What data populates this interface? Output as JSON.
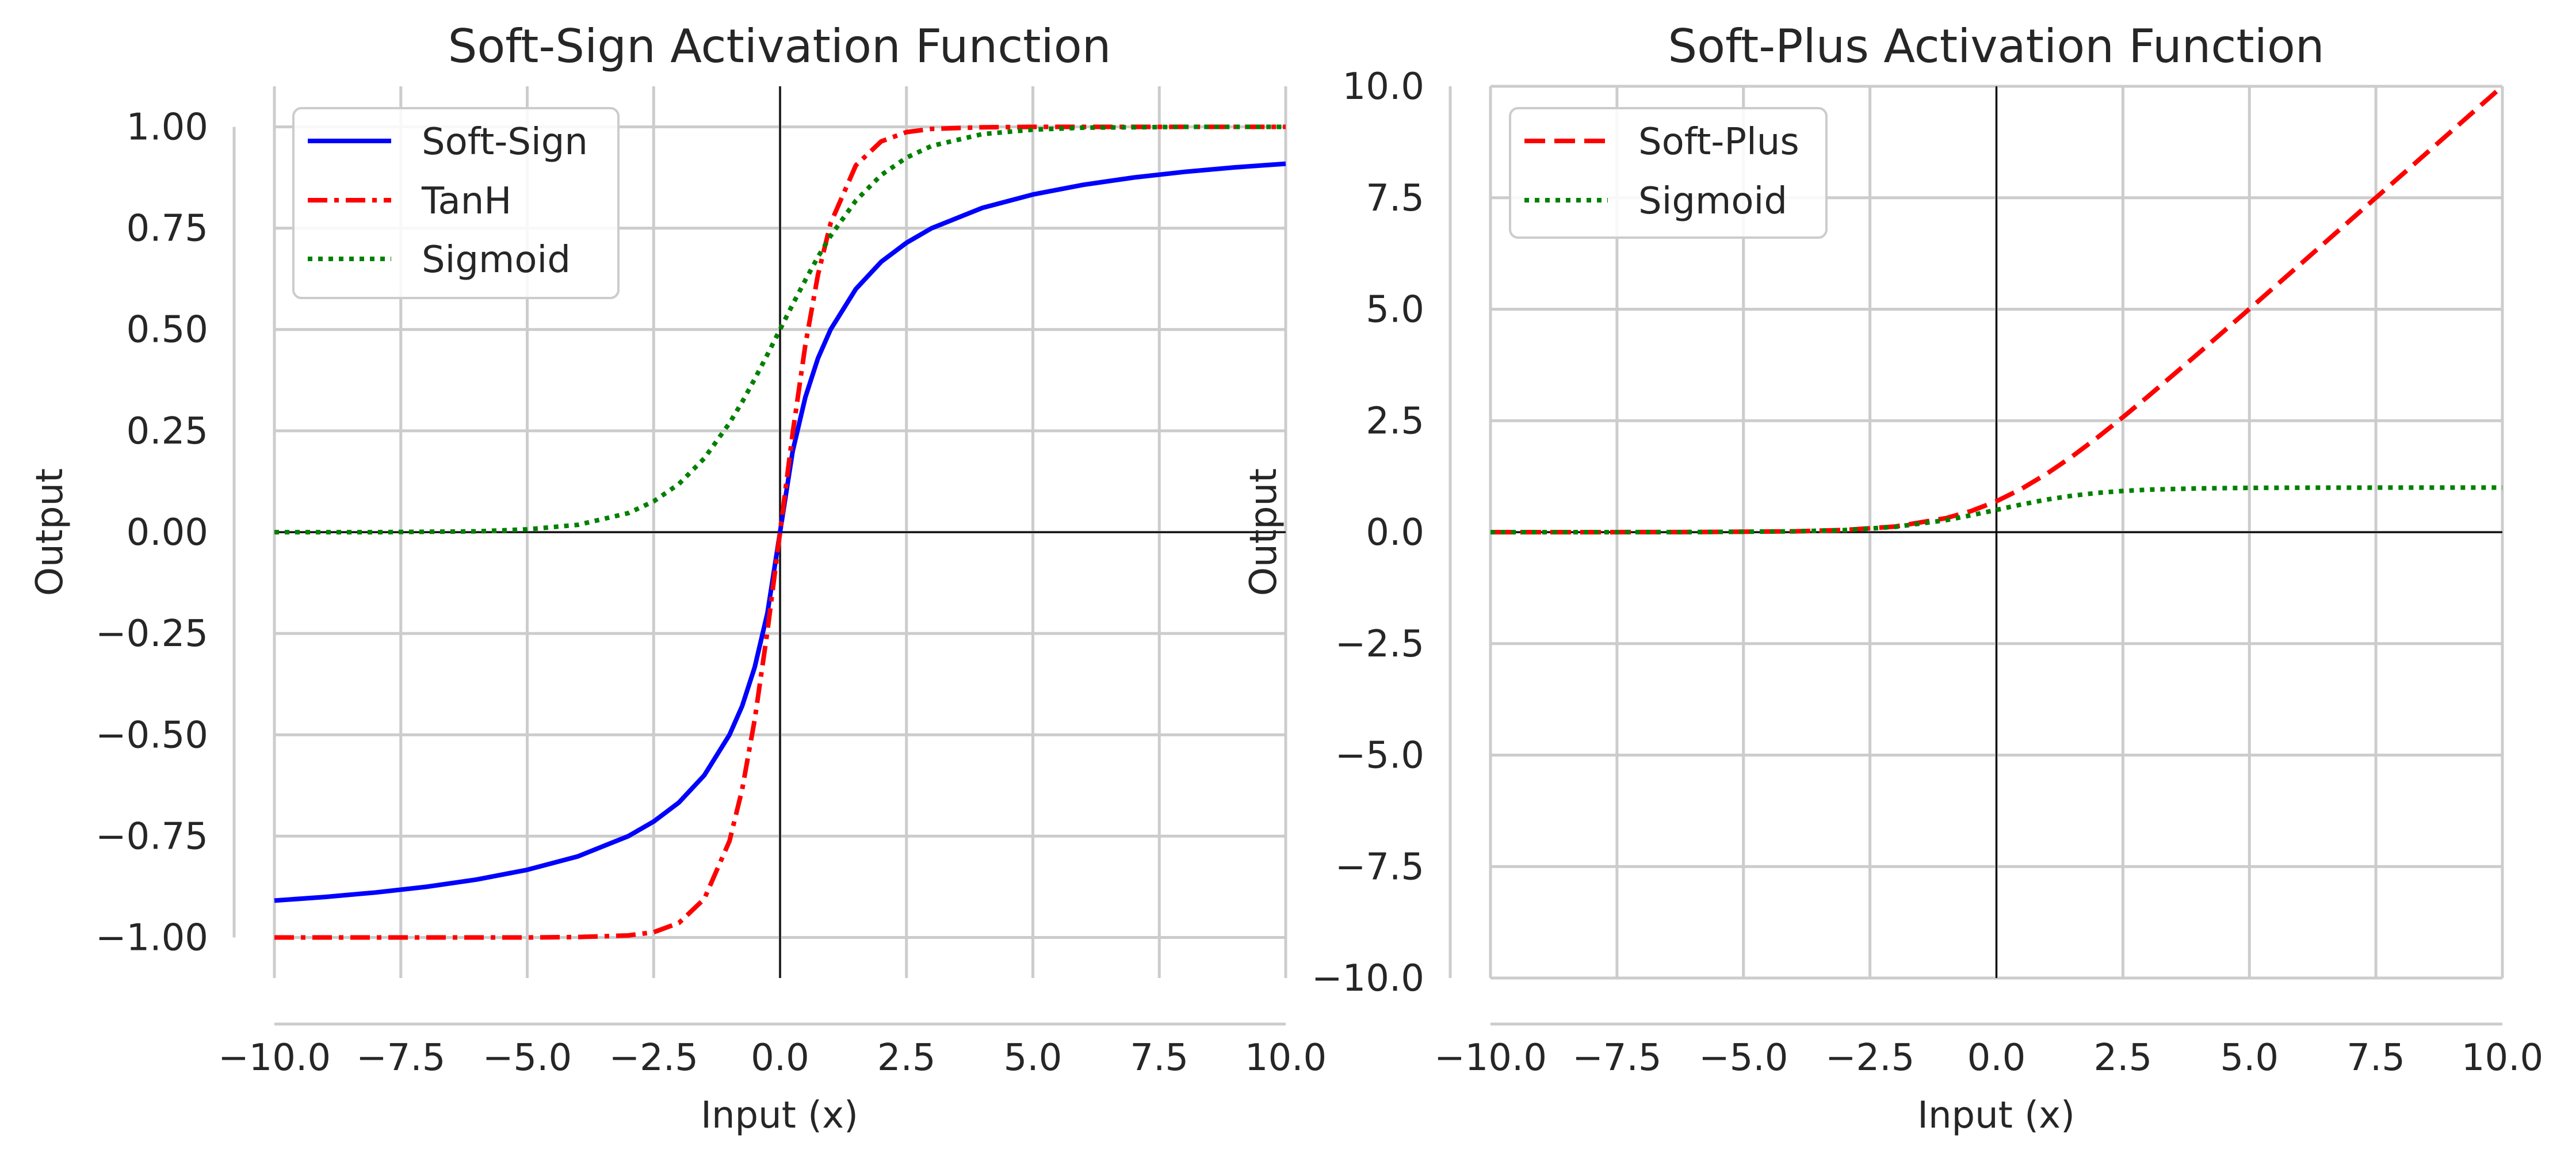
{
  "chart_data": [
    {
      "type": "line",
      "title": "Soft-Sign Activation Function",
      "xlabel": "Input (x)",
      "ylabel": "Output",
      "xlim": [
        -10,
        10
      ],
      "ylim": [
        -1.1,
        1.1
      ],
      "xticks": [
        -10,
        -7.5,
        -5,
        -2.5,
        0,
        2.5,
        5,
        7.5,
        10
      ],
      "xtick_labels": [
        "−10.0",
        "−7.5",
        "−5.0",
        "−2.5",
        "0.0",
        "2.5",
        "5.0",
        "7.5",
        "10.0"
      ],
      "yticks": [
        -1,
        -0.75,
        -0.5,
        -0.25,
        0,
        0.25,
        0.5,
        0.75,
        1
      ],
      "ytick_labels": [
        "−1.00",
        "−0.75",
        "−0.50",
        "−0.25",
        "0.00",
        "0.25",
        "0.50",
        "0.75",
        "1.00"
      ],
      "grid": true,
      "legend_position": "upper-left",
      "x": [
        -10,
        -9,
        -8,
        -7,
        -6,
        -5,
        -4,
        -3,
        -2.5,
        -2,
        -1.5,
        -1,
        -0.75,
        -0.5,
        -0.25,
        0,
        0.25,
        0.5,
        0.75,
        1,
        1.5,
        2,
        2.5,
        3,
        4,
        5,
        6,
        7,
        8,
        9,
        10
      ],
      "series": [
        {
          "name": "Soft-Sign",
          "color": "#0000ff",
          "dash": "solid",
          "values": [
            -0.909,
            -0.9,
            -0.889,
            -0.875,
            -0.857,
            -0.833,
            -0.8,
            -0.75,
            -0.714,
            -0.667,
            -0.6,
            -0.5,
            -0.429,
            -0.333,
            -0.2,
            0,
            0.2,
            0.333,
            0.429,
            0.5,
            0.6,
            0.667,
            0.714,
            0.75,
            0.8,
            0.833,
            0.857,
            0.875,
            0.889,
            0.9,
            0.909
          ]
        },
        {
          "name": "TanH",
          "color": "#ff0000",
          "dash": "dashdot",
          "values": [
            -1,
            -1,
            -1,
            -1,
            -1,
            -1,
            -0.999,
            -0.995,
            -0.987,
            -0.964,
            -0.905,
            -0.762,
            -0.635,
            -0.462,
            -0.245,
            0,
            0.245,
            0.462,
            0.635,
            0.762,
            0.905,
            0.964,
            0.987,
            0.995,
            0.999,
            1,
            1,
            1,
            1,
            1,
            1
          ]
        },
        {
          "name": "Sigmoid",
          "color": "#008000",
          "dash": "dotted",
          "values": [
            0,
            0,
            0,
            0.001,
            0.002,
            0.007,
            0.018,
            0.047,
            0.076,
            0.119,
            0.182,
            0.269,
            0.321,
            0.378,
            0.438,
            0.5,
            0.562,
            0.622,
            0.679,
            0.731,
            0.818,
            0.881,
            0.924,
            0.953,
            0.982,
            0.993,
            0.998,
            0.999,
            1,
            1,
            1
          ]
        }
      ]
    },
    {
      "type": "line",
      "title": "Soft-Plus Activation Function",
      "xlabel": "Input (x)",
      "ylabel": "Output",
      "xlim": [
        -10,
        10
      ],
      "ylim": [
        -10,
        10
      ],
      "xticks": [
        -10,
        -7.5,
        -5,
        -2.5,
        0,
        2.5,
        5,
        7.5,
        10
      ],
      "xtick_labels": [
        "−10.0",
        "−7.5",
        "−5.0",
        "−2.5",
        "0.0",
        "2.5",
        "5.0",
        "7.5",
        "10.0"
      ],
      "yticks": [
        -10,
        -7.5,
        -5,
        -2.5,
        0,
        2.5,
        5,
        7.5,
        10
      ],
      "ytick_labels": [
        "−10.0",
        "−7.5",
        "−5.0",
        "−2.5",
        "0.0",
        "2.5",
        "5.0",
        "7.5",
        "10.0"
      ],
      "grid": true,
      "legend_position": "upper-left",
      "x": [
        -10,
        -8,
        -6,
        -4,
        -3,
        -2,
        -1,
        -0.5,
        0,
        0.5,
        1,
        1.5,
        2,
        2.5,
        3,
        4,
        5,
        6,
        7,
        8,
        9,
        10
      ],
      "series": [
        {
          "name": "Soft-Plus",
          "color": "#ff0000",
          "dash": "dashed",
          "values": [
            0,
            0,
            0.002,
            0.018,
            0.049,
            0.127,
            0.313,
            0.474,
            0.693,
            0.974,
            1.313,
            1.701,
            2.127,
            2.579,
            3.049,
            4.018,
            5.007,
            6.002,
            7.001,
            8,
            9,
            10
          ]
        },
        {
          "name": "Sigmoid",
          "color": "#008000",
          "dash": "dotted",
          "values": [
            0,
            0,
            0.002,
            0.018,
            0.047,
            0.119,
            0.269,
            0.378,
            0.5,
            0.622,
            0.731,
            0.818,
            0.881,
            0.924,
            0.953,
            0.982,
            0.993,
            0.998,
            0.999,
            1,
            1,
            1
          ]
        }
      ]
    }
  ]
}
